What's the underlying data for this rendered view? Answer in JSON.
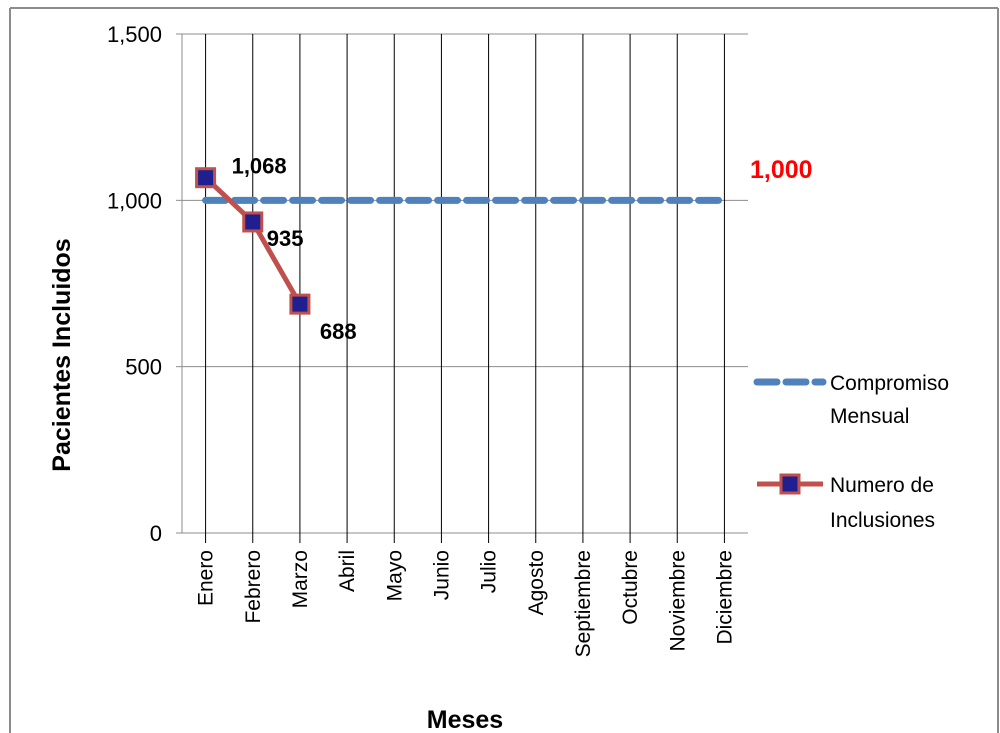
{
  "chart_data": {
    "type": "line",
    "xlabel": "Meses",
    "ylabel": "Pacientes Incluidos",
    "ylim": [
      0,
      1500
    ],
    "yticks": [
      0,
      500,
      1000,
      1500
    ],
    "ytick_labels": [
      "0",
      "500",
      "1,000",
      "1,500"
    ],
    "categories": [
      "Enero",
      "Febrero",
      "Marzo",
      "Abril",
      "Mayo",
      "Junio",
      "Julio",
      "Agosto",
      "Septiembre",
      "Octubre",
      "Noviembre",
      "Diciembre"
    ],
    "series": [
      {
        "name": "Compromiso Mensual",
        "style": "dashed",
        "color": "#4f81bd",
        "values": [
          1000,
          1000,
          1000,
          1000,
          1000,
          1000,
          1000,
          1000,
          1000,
          1000,
          1000,
          1000
        ]
      },
      {
        "name": "Numero de Inclusiones",
        "style": "solid-markers",
        "color": "#c0504d",
        "marker_color": "#1f1f8f",
        "values": [
          1068,
          935,
          688,
          null,
          null,
          null,
          null,
          null,
          null,
          null,
          null,
          null
        ],
        "data_labels": [
          "1,068",
          "935",
          "688"
        ]
      }
    ],
    "annotations": [
      {
        "text": "1,000",
        "color": "#ff0000",
        "near": "end of Compromiso Mensual line"
      }
    ],
    "grid": {
      "horizontal": true,
      "vertical": true
    },
    "legend": {
      "position": "right",
      "items": [
        {
          "label_lines": [
            "Compromiso",
            "Mensual"
          ]
        },
        {
          "label_lines": [
            "Numero de",
            "Inclusiones"
          ]
        }
      ]
    }
  }
}
